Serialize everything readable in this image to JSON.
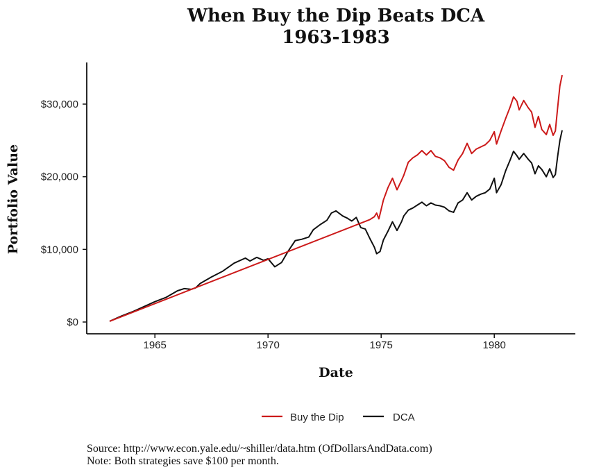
{
  "chart_data": {
    "type": "line",
    "title_line1": "When Buy the Dip Beats DCA",
    "title_line2": "1963-1983",
    "xlabel": "Date",
    "ylabel": "Portfolio Value",
    "xlim": [
      1963.0,
      1983.0
    ],
    "ylim": [
      0,
      35000
    ],
    "x_ticks": [
      1965,
      1970,
      1975,
      1980
    ],
    "x_tick_labels": [
      "1965",
      "1970",
      "1975",
      "1980"
    ],
    "y_ticks": [
      0,
      10000,
      20000,
      30000
    ],
    "y_tick_labels": [
      "$0",
      "$10,000",
      "$20,000",
      "$30,000"
    ],
    "grid": false,
    "legend_position": "bottom",
    "series": [
      {
        "name": "Buy the Dip",
        "color": "#cc1a1a",
        "points": [
          [
            1963.0,
            100
          ],
          [
            1974.5,
            14100
          ],
          [
            1974.7,
            14500
          ],
          [
            1974.8,
            15000
          ],
          [
            1974.9,
            14200
          ],
          [
            1975.0,
            15500
          ],
          [
            1975.1,
            16800
          ],
          [
            1975.3,
            18500
          ],
          [
            1975.5,
            19800
          ],
          [
            1975.7,
            18200
          ],
          [
            1975.9,
            19500
          ],
          [
            1976.0,
            20200
          ],
          [
            1976.2,
            22000
          ],
          [
            1976.4,
            22600
          ],
          [
            1976.6,
            23000
          ],
          [
            1976.8,
            23600
          ],
          [
            1977.0,
            23000
          ],
          [
            1977.2,
            23600
          ],
          [
            1977.4,
            22800
          ],
          [
            1977.6,
            22600
          ],
          [
            1977.8,
            22200
          ],
          [
            1978.0,
            21300
          ],
          [
            1978.2,
            20900
          ],
          [
            1978.4,
            22300
          ],
          [
            1978.6,
            23200
          ],
          [
            1978.8,
            24600
          ],
          [
            1979.0,
            23200
          ],
          [
            1979.2,
            23800
          ],
          [
            1979.4,
            24100
          ],
          [
            1979.6,
            24400
          ],
          [
            1979.8,
            25000
          ],
          [
            1980.0,
            26200
          ],
          [
            1980.1,
            24500
          ],
          [
            1980.3,
            26300
          ],
          [
            1980.5,
            28000
          ],
          [
            1980.7,
            29600
          ],
          [
            1980.85,
            31000
          ],
          [
            1981.0,
            30400
          ],
          [
            1981.1,
            29200
          ],
          [
            1981.3,
            30500
          ],
          [
            1981.5,
            29500
          ],
          [
            1981.65,
            28900
          ],
          [
            1981.8,
            26800
          ],
          [
            1981.95,
            28300
          ],
          [
            1982.1,
            26500
          ],
          [
            1982.3,
            25800
          ],
          [
            1982.45,
            27200
          ],
          [
            1982.6,
            25700
          ],
          [
            1982.7,
            26300
          ],
          [
            1982.8,
            29500
          ],
          [
            1982.9,
            32500
          ],
          [
            1983.0,
            34000
          ]
        ]
      },
      {
        "name": "DCA",
        "color": "#111111",
        "points": [
          [
            1963.0,
            100
          ],
          [
            1963.5,
            800
          ],
          [
            1964.0,
            1400
          ],
          [
            1964.5,
            2100
          ],
          [
            1965.0,
            2800
          ],
          [
            1965.5,
            3400
          ],
          [
            1966.0,
            4300
          ],
          [
            1966.3,
            4600
          ],
          [
            1966.6,
            4500
          ],
          [
            1966.8,
            4700
          ],
          [
            1967.0,
            5300
          ],
          [
            1967.5,
            6200
          ],
          [
            1968.0,
            7000
          ],
          [
            1968.5,
            8100
          ],
          [
            1969.0,
            8800
          ],
          [
            1969.2,
            8400
          ],
          [
            1969.5,
            8900
          ],
          [
            1969.8,
            8500
          ],
          [
            1970.0,
            8700
          ],
          [
            1970.3,
            7600
          ],
          [
            1970.6,
            8200
          ],
          [
            1970.9,
            9800
          ],
          [
            1971.2,
            11200
          ],
          [
            1971.5,
            11400
          ],
          [
            1971.8,
            11700
          ],
          [
            1972.0,
            12700
          ],
          [
            1972.3,
            13400
          ],
          [
            1972.6,
            14000
          ],
          [
            1972.8,
            15000
          ],
          [
            1973.0,
            15300
          ],
          [
            1973.3,
            14600
          ],
          [
            1973.5,
            14300
          ],
          [
            1973.7,
            13900
          ],
          [
            1973.9,
            14400
          ],
          [
            1974.1,
            13000
          ],
          [
            1974.3,
            12800
          ],
          [
            1974.5,
            11500
          ],
          [
            1974.7,
            10300
          ],
          [
            1974.8,
            9400
          ],
          [
            1974.95,
            9700
          ],
          [
            1975.1,
            11300
          ],
          [
            1975.3,
            12500
          ],
          [
            1975.5,
            13800
          ],
          [
            1975.7,
            12600
          ],
          [
            1975.9,
            13800
          ],
          [
            1976.0,
            14600
          ],
          [
            1976.2,
            15400
          ],
          [
            1976.4,
            15700
          ],
          [
            1976.6,
            16100
          ],
          [
            1976.8,
            16500
          ],
          [
            1977.0,
            16000
          ],
          [
            1977.2,
            16400
          ],
          [
            1977.4,
            16100
          ],
          [
            1977.6,
            16000
          ],
          [
            1977.8,
            15800
          ],
          [
            1978.0,
            15300
          ],
          [
            1978.2,
            15100
          ],
          [
            1978.4,
            16400
          ],
          [
            1978.6,
            16800
          ],
          [
            1978.8,
            17800
          ],
          [
            1979.0,
            16800
          ],
          [
            1979.2,
            17300
          ],
          [
            1979.4,
            17600
          ],
          [
            1979.6,
            17800
          ],
          [
            1979.8,
            18300
          ],
          [
            1980.0,
            19800
          ],
          [
            1980.1,
            17800
          ],
          [
            1980.3,
            18900
          ],
          [
            1980.5,
            20800
          ],
          [
            1980.7,
            22300
          ],
          [
            1980.85,
            23500
          ],
          [
            1981.0,
            22900
          ],
          [
            1981.1,
            22400
          ],
          [
            1981.3,
            23200
          ],
          [
            1981.5,
            22400
          ],
          [
            1981.65,
            21900
          ],
          [
            1981.8,
            20400
          ],
          [
            1981.95,
            21500
          ],
          [
            1982.1,
            21000
          ],
          [
            1982.3,
            20000
          ],
          [
            1982.45,
            21100
          ],
          [
            1982.6,
            19900
          ],
          [
            1982.7,
            20300
          ],
          [
            1982.8,
            22800
          ],
          [
            1982.9,
            25000
          ],
          [
            1983.0,
            26400
          ]
        ]
      }
    ]
  },
  "notes": {
    "source": "Source:  http://www.econ.yale.edu/~shiller/data.htm (OfDollarsAndData.com)",
    "note": "Note: Both strategies save $100 per month."
  }
}
